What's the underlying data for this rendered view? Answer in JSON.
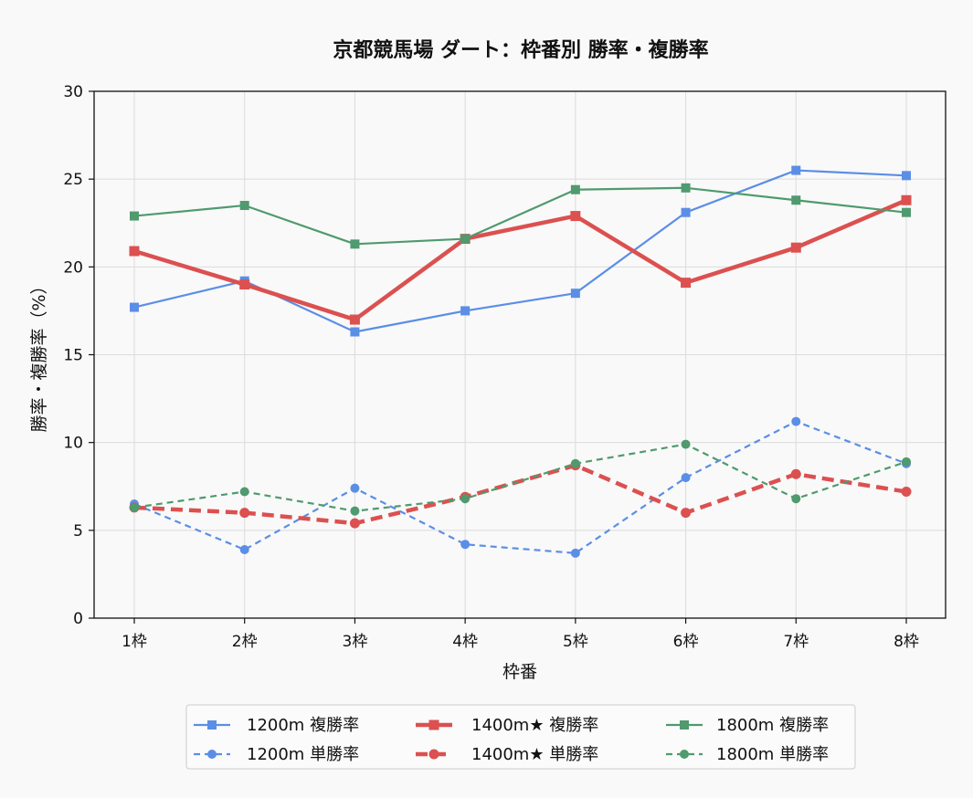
{
  "chart_data": {
    "type": "line",
    "title": "京都競馬場 ダート：枠番別 勝率・複勝率",
    "xlabel": "枠番",
    "ylabel": "勝率・複勝率（%）",
    "categories": [
      "1枠",
      "2枠",
      "3枠",
      "4枠",
      "5枠",
      "6枠",
      "7枠",
      "8枠"
    ],
    "ylim": [
      0,
      30
    ],
    "yticks": [
      "0",
      "5",
      "10",
      "15",
      "20",
      "25",
      "30"
    ],
    "grid": true,
    "legend_position": "bottom",
    "series": [
      {
        "name": "1200m 複勝率",
        "values": [
          17.7,
          19.2,
          16.3,
          17.5,
          18.5,
          23.1,
          25.5,
          25.2
        ],
        "color": "#5b8ee6",
        "style": "solid",
        "marker": "square",
        "weight": "normal"
      },
      {
        "name": "1200m 単勝率",
        "values": [
          6.5,
          3.9,
          7.4,
          4.2,
          3.7,
          8.0,
          11.2,
          8.8
        ],
        "color": "#5b8ee6",
        "style": "dashed",
        "marker": "circle",
        "weight": "normal"
      },
      {
        "name": "1400m★ 複勝率",
        "values": [
          20.9,
          19.0,
          17.0,
          21.6,
          22.9,
          19.1,
          21.1,
          23.8
        ],
        "color": "#dc5050",
        "style": "solid",
        "marker": "square",
        "weight": "bold"
      },
      {
        "name": "1400m★ 単勝率",
        "values": [
          6.3,
          6.0,
          5.4,
          6.9,
          8.7,
          6.0,
          8.2,
          7.2
        ],
        "color": "#dc5050",
        "style": "dashed",
        "marker": "circle",
        "weight": "bold"
      },
      {
        "name": "1800m 複勝率",
        "values": [
          22.9,
          23.5,
          21.3,
          21.6,
          24.4,
          24.5,
          23.8,
          23.1
        ],
        "color": "#4f9a6e",
        "style": "solid",
        "marker": "square",
        "weight": "normal"
      },
      {
        "name": "1800m 単勝率",
        "values": [
          6.3,
          7.2,
          6.1,
          6.8,
          8.8,
          9.9,
          6.8,
          8.9
        ],
        "color": "#4f9a6e",
        "style": "dashed",
        "marker": "circle",
        "weight": "normal"
      }
    ]
  }
}
